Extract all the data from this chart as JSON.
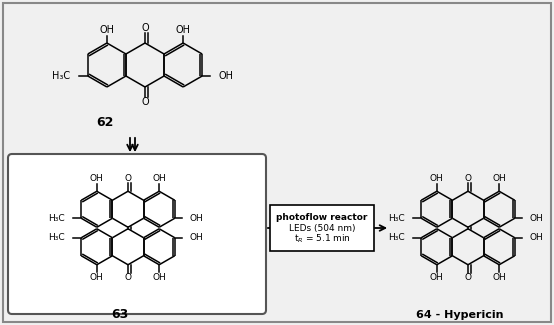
{
  "bg_color": "#f0f0f0",
  "border_color": "#888888",
  "line_color": "#000000",
  "text_color": "#000000",
  "box_fill": "#ffffff",
  "compound_62_label": "62",
  "compound_63_label": "63",
  "compound_64_label": "64 - Hypericin",
  "reactor_line1": "photoflow reactor",
  "reactor_line2": "LEDs (504 nm)",
  "reactor_line3": "tᴵ = 5.1 min",
  "lw": 1.1,
  "fig_width": 5.54,
  "fig_height": 3.25,
  "dpi": 100
}
